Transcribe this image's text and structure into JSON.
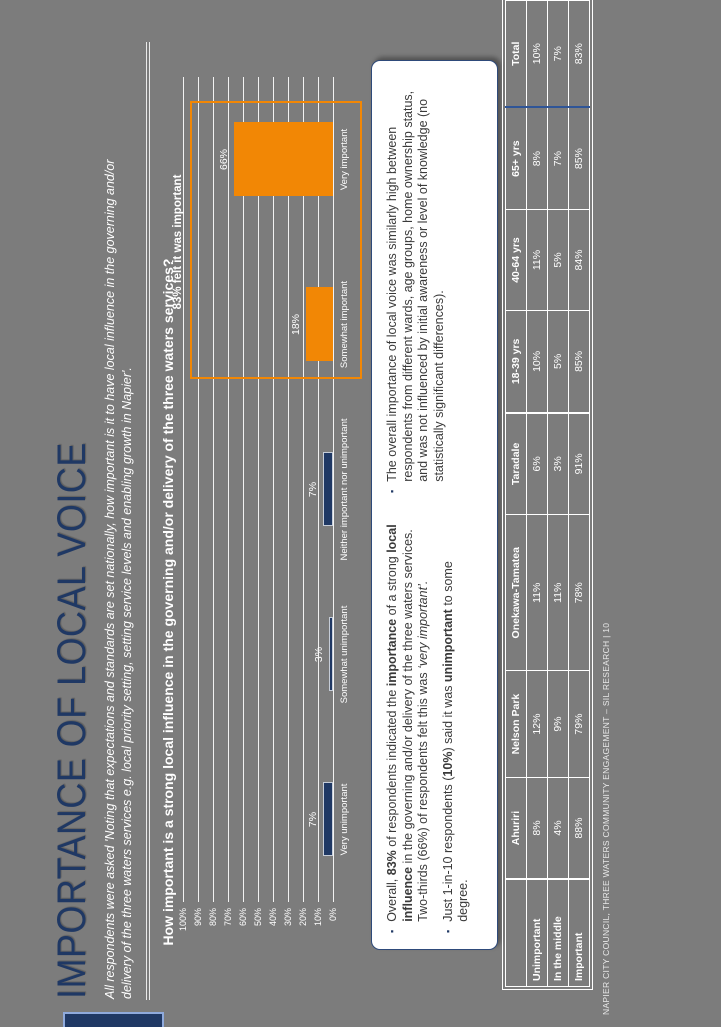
{
  "header": {
    "title": "IMPORTANCE OF LOCAL VOICE",
    "subtitle_line1": "All respondents were asked 'Noting that expectations and standards are set nationally, how important is it to have local influence in the governing and/or",
    "subtitle_line2": "delivery of the three waters services e.g. local priority setting, setting service levels and enabling growth in Napier'."
  },
  "chart_data": {
    "type": "bar",
    "title": "How important is a strong local influence in the governing and/or delivery of the three waters services?",
    "categories": [
      "Very unimportant",
      "Somewhat unimportant",
      "Neither important nor unimportant",
      "Somewhat important",
      "Very important"
    ],
    "values": [
      7,
      3,
      7,
      18,
      66
    ],
    "value_labels": [
      "7%",
      "3%",
      "7%",
      "18%",
      "66%"
    ],
    "bar_colors": [
      "#1f3864",
      "#1f3864",
      "#1f3864",
      "#f28705",
      "#f28705"
    ],
    "xlabel": "",
    "ylabel": "",
    "ylim": [
      0,
      100
    ],
    "yticks": [
      "0%",
      "10%",
      "20%",
      "30%",
      "40%",
      "50%",
      "60%",
      "70%",
      "80%",
      "90%",
      "100%"
    ],
    "grid": true,
    "legend": false,
    "callout": {
      "label": "83% felt it was important",
      "covers_categories": [
        "Somewhat important",
        "Very important"
      ],
      "color": "#f28705"
    }
  },
  "bullets": {
    "left": [
      [
        {
          "t": "Overall, "
        },
        {
          "t": "83%",
          "b": true
        },
        {
          "t": " of respondents indicated the "
        },
        {
          "t": "importance",
          "b": true
        },
        {
          "t": " of a strong "
        },
        {
          "t": "local influence",
          "b": true
        },
        {
          "t": " in the governing and/or delivery of the three waters services. Two-thirds (66%) of respondents felt this was "
        },
        {
          "t": "‘very important’.",
          "i": true
        }
      ],
      [
        {
          "t": "Just 1-in-10 respondents ("
        },
        {
          "t": "10%",
          "b": true
        },
        {
          "t": ") said it was "
        },
        {
          "t": "unimportant",
          "b": true
        },
        {
          "t": " to some degree."
        }
      ]
    ],
    "right": [
      [
        {
          "t": "The overall importance of local voice was similarly high between respondents from different wards, age groups, home ownership status, and was not influenced by initial awareness or level of knowledge (no statistically significant differences)."
        }
      ]
    ]
  },
  "table": {
    "corner_label": "",
    "headers": [
      "Ahuriri",
      "Nelson Park",
      "Onekawa-Tamatea",
      "Taradale",
      "18-39 yrs",
      "40-64 yrs",
      "65+ yrs",
      "Total"
    ],
    "rows": [
      {
        "label": "Unimportant",
        "values": [
          "8%",
          "12%",
          "11%",
          "6%",
          "10%",
          "11%",
          "8%",
          "10%"
        ]
      },
      {
        "label": "In the middle",
        "values": [
          "4%",
          "9%",
          "11%",
          "3%",
          "5%",
          "5%",
          "7%",
          "7%"
        ]
      },
      {
        "label": "Important",
        "values": [
          "88%",
          "79%",
          "78%",
          "91%",
          "85%",
          "84%",
          "85%",
          "83%"
        ]
      }
    ]
  },
  "footer": {
    "text": "NAPIER CITY COUNCIL, THREE WATERS COMMUNITY ENGAGEMENT – SIL RESEARCH | 10"
  },
  "colors": {
    "background": "#7c7c7c",
    "navy": "#1f3864",
    "orange": "#f28705",
    "white": "#ffffff"
  }
}
